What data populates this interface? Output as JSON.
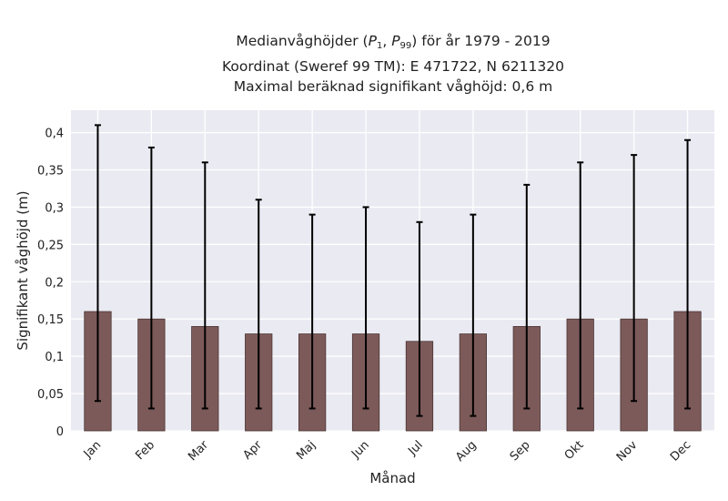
{
  "chart_data": {
    "type": "bar",
    "title_lines": [
      {
        "prefix": "Medianvåghöjder (",
        "p1_base": "P",
        "p1_sub": "1",
        "sep": ", ",
        "p99_base": "P",
        "p99_sub": "99",
        "suffix": ") för år 1979 - 2019"
      },
      "Koordinat (Sweref 99 TM): E 471722, N 6211320",
      "Maximal beräknad signifikant våghöjd: 0,6 m"
    ],
    "xlabel": "Månad",
    "ylabel": "Signifikant våghöjd (m)",
    "ylim": [
      0,
      0.43
    ],
    "yticks": [
      0,
      0.05,
      0.1,
      0.15,
      0.2,
      0.25,
      0.3,
      0.35,
      0.4
    ],
    "ytick_labels": [
      "0",
      "0,05",
      "0,1",
      "0,15",
      "0,2",
      "0,25",
      "0,3",
      "0,35",
      "0,4"
    ],
    "categories": [
      "Jan",
      "Feb",
      "Mar",
      "Apr",
      "Maj",
      "Jun",
      "Jul",
      "Aug",
      "Sep",
      "Okt",
      "Nov",
      "Dec"
    ],
    "values": [
      0.16,
      0.15,
      0.14,
      0.13,
      0.13,
      0.13,
      0.12,
      0.13,
      0.14,
      0.15,
      0.15,
      0.16
    ],
    "p1": [
      0.04,
      0.03,
      0.03,
      0.03,
      0.03,
      0.03,
      0.02,
      0.02,
      0.03,
      0.03,
      0.04,
      0.03
    ],
    "p99": [
      0.41,
      0.38,
      0.36,
      0.31,
      0.29,
      0.3,
      0.28,
      0.29,
      0.33,
      0.36,
      0.37,
      0.39
    ],
    "grid": true,
    "colors": {
      "bar": "#7d5a5a",
      "bar_edge": "#4a3535",
      "errorbar": "#000000",
      "plot_bg": "#eaeaf2",
      "grid": "#ffffff"
    }
  }
}
